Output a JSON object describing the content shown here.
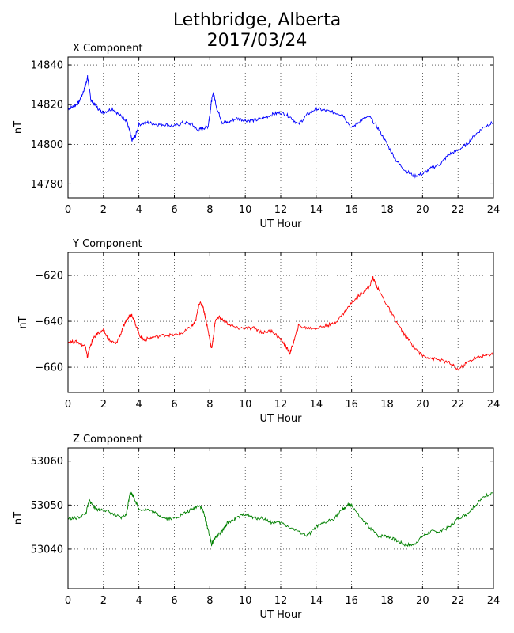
{
  "figure": {
    "title_line1": "Lethbridge, Alberta",
    "title_line2": "2017/03/24"
  },
  "chart_data": [
    {
      "type": "line",
      "title": "X Component",
      "xlabel": "UT Hour",
      "ylabel": "nT",
      "xlim": [
        0,
        24
      ],
      "ylim": [
        14773,
        14844
      ],
      "xticks": [
        0,
        2,
        4,
        6,
        8,
        10,
        12,
        14,
        16,
        18,
        20,
        22,
        24
      ],
      "yticks": [
        14780,
        14800,
        14820,
        14840
      ],
      "grid": true,
      "color": "#0000ff",
      "series": [
        {
          "x": [
            0,
            0.3,
            0.6,
            0.8,
            1.0,
            1.1,
            1.2,
            1.3,
            1.5,
            1.8,
            2.0,
            2.5,
            3.0,
            3.3,
            3.5,
            3.6,
            3.8,
            4.0,
            4.5,
            5.0,
            5.5,
            6.0,
            6.5,
            7.0,
            7.3,
            7.6,
            7.9,
            8.0,
            8.1,
            8.2,
            8.4,
            8.7,
            9.0,
            9.5,
            10.0,
            10.5,
            11.0,
            11.5,
            12.0,
            12.5,
            13.0,
            13.5,
            14.0,
            14.5,
            15.0,
            15.5,
            16.0,
            16.5,
            17.0,
            17.5,
            18.0,
            18.5,
            19.0,
            19.5,
            20.0,
            20.5,
            21.0,
            21.5,
            22.0,
            22.5,
            23.0,
            23.5,
            24.0
          ],
          "y": [
            14818,
            14819,
            14821,
            14825,
            14830,
            14834,
            14828,
            14822,
            14820,
            14817,
            14816,
            14818,
            14814,
            14812,
            14806,
            14802,
            14804,
            14810,
            14811,
            14810,
            14810,
            14809,
            14811,
            14810,
            14807,
            14808,
            14809,
            14815,
            14822,
            14826,
            14818,
            14811,
            14811,
            14813,
            14812,
            14812,
            14813,
            14815,
            14816,
            14814,
            14810,
            14815,
            14818,
            14817,
            14816,
            14815,
            14808,
            14812,
            14814,
            14808,
            14800,
            14792,
            14787,
            14784,
            14785,
            14788,
            14790,
            14795,
            14797,
            14800,
            14805,
            14809,
            14811
          ]
        }
      ]
    },
    {
      "type": "line",
      "title": "Y Component",
      "xlabel": "UT Hour",
      "ylabel": "nT",
      "xlim": [
        0,
        24
      ],
      "ylim": [
        -671,
        -610
      ],
      "xticks": [
        0,
        2,
        4,
        6,
        8,
        10,
        12,
        14,
        16,
        18,
        20,
        22,
        24
      ],
      "yticks": [
        -620,
        -640,
        -660
      ],
      "grid": true,
      "color": "#ff0000",
      "series": [
        {
          "x": [
            0,
            0.5,
            1.0,
            1.1,
            1.2,
            1.4,
            1.7,
            2.0,
            2.3,
            2.7,
            3.0,
            3.2,
            3.4,
            3.6,
            3.8,
            4.1,
            4.3,
            4.8,
            5.5,
            6.0,
            6.5,
            7.0,
            7.2,
            7.4,
            7.6,
            7.8,
            8.0,
            8.1,
            8.2,
            8.3,
            8.5,
            9.0,
            9.5,
            10.0,
            10.5,
            11.0,
            11.5,
            12.0,
            12.3,
            12.5,
            12.7,
            13.0,
            13.5,
            14.0,
            14.5,
            15.0,
            15.5,
            16.0,
            16.5,
            17.0,
            17.2,
            17.5,
            18.0,
            18.5,
            19.0,
            19.5,
            20.0,
            20.5,
            21.0,
            21.5,
            22.0,
            22.5,
            23.0,
            23.5,
            24.0
          ],
          "y": [
            -649,
            -649,
            -651,
            -656,
            -652,
            -648,
            -645,
            -644,
            -648,
            -650,
            -645,
            -641,
            -638,
            -637,
            -641,
            -647,
            -648,
            -647,
            -646,
            -646,
            -645,
            -642,
            -640,
            -632,
            -633,
            -640,
            -648,
            -652,
            -647,
            -640,
            -638,
            -641,
            -643,
            -643,
            -643,
            -645,
            -644,
            -648,
            -651,
            -654,
            -650,
            -642,
            -643,
            -643,
            -642,
            -641,
            -637,
            -632,
            -628,
            -625,
            -621,
            -626,
            -633,
            -640,
            -646,
            -651,
            -655,
            -656,
            -657,
            -658,
            -661,
            -658,
            -656,
            -655,
            -654
          ]
        }
      ]
    },
    {
      "type": "line",
      "title": "Z Component",
      "xlabel": "UT Hour",
      "ylabel": "nT",
      "xlim": [
        0,
        24
      ],
      "ylim": [
        53031,
        53063
      ],
      "xticks": [
        0,
        2,
        4,
        6,
        8,
        10,
        12,
        14,
        16,
        18,
        20,
        22,
        24
      ],
      "yticks": [
        53040,
        53050,
        53060
      ],
      "grid": true,
      "color": "#008000",
      "series": [
        {
          "x": [
            0,
            0.5,
            1.0,
            1.2,
            1.4,
            1.6,
            2.0,
            2.5,
            3.0,
            3.3,
            3.5,
            3.7,
            4.0,
            4.5,
            5.0,
            5.5,
            6.0,
            6.5,
            7.0,
            7.4,
            7.6,
            7.8,
            8.0,
            8.1,
            8.2,
            8.4,
            8.7,
            9.0,
            9.5,
            10.0,
            10.5,
            11.0,
            11.5,
            12.0,
            12.5,
            13.0,
            13.5,
            14.0,
            14.5,
            15.0,
            15.5,
            15.8,
            16.0,
            16.5,
            17.0,
            17.5,
            18.0,
            18.5,
            19.0,
            19.5,
            20.0,
            20.5,
            21.0,
            21.5,
            22.0,
            22.5,
            23.0,
            23.5,
            24.0
          ],
          "y": [
            53047,
            53047,
            53048,
            53051,
            53050,
            53049,
            53049,
            53048,
            53047,
            53048,
            53053,
            53052,
            53049,
            53049,
            53048,
            53047,
            53047,
            53048,
            53049,
            53050,
            53049,
            53046,
            53043,
            53041,
            53042,
            53043,
            53044,
            53046,
            53047,
            53048,
            53047,
            53047,
            53046,
            53046,
            53045,
            53044,
            53043,
            53045,
            53046,
            53047,
            53049,
            53050,
            53050,
            53047,
            53045,
            53043,
            53043,
            53042,
            53041,
            53041,
            53043,
            53044,
            53044,
            53045,
            53047,
            53048,
            53050,
            53052,
            53053
          ]
        }
      ]
    }
  ]
}
